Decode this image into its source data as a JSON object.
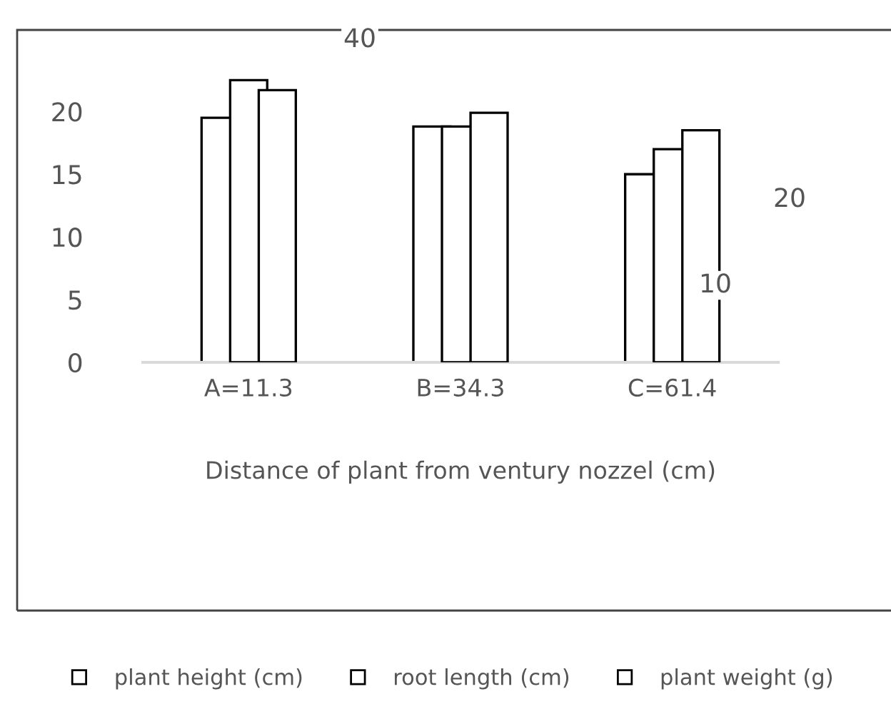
{
  "chart_data": {
    "type": "bar",
    "categories": [
      "A=11.3",
      "B=34.3",
      "C=61.4"
    ],
    "xlabel": "Distance of plant from ventury nozzel (cm)",
    "series": [
      {
        "name": "plant height (cm)",
        "color": "#ffffff",
        "values": [
          19.5,
          18.8,
          15.0
        ]
      },
      {
        "name": "root length (cm)",
        "color": "#ffffff",
        "values": [
          22.5,
          18.8,
          17.0
        ]
      },
      {
        "name": "plant weight (g)",
        "color": "#ffffff",
        "values": [
          21.7,
          19.9,
          18.5
        ]
      }
    ],
    "ylim": [
      0,
      26.5
    ],
    "yticks": [
      0,
      5,
      10,
      15,
      20
    ],
    "annotations": [
      "40",
      "20",
      "10"
    ],
    "grid": false,
    "legend": "bottom",
    "marker": "square"
  }
}
